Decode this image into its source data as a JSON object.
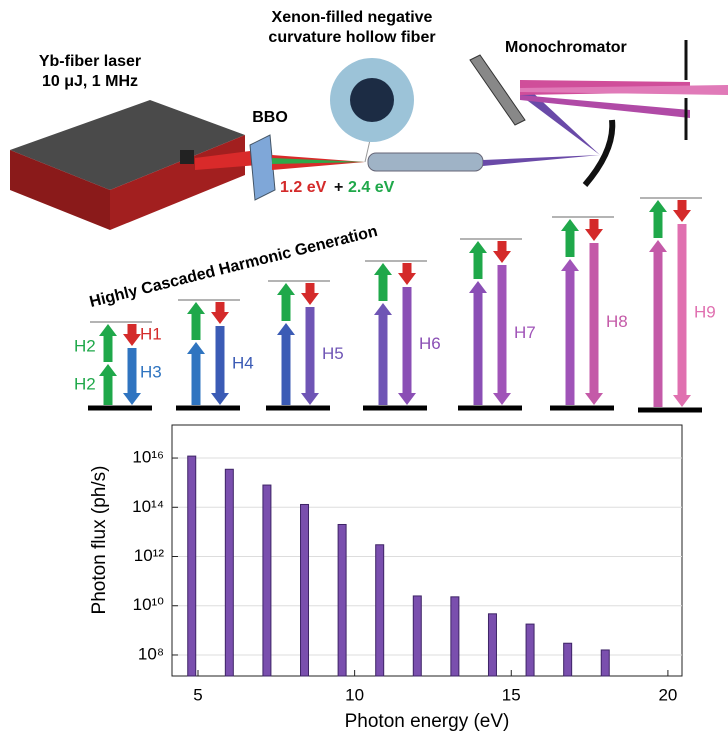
{
  "diagram": {
    "laser": [
      "Yb-fiber laser",
      "10 μJ, 1 MHz"
    ],
    "bbo": "BBO",
    "fiber": [
      "Xenon-filled negative",
      "curvature hollow fiber"
    ],
    "monochromator": "Monochromator",
    "beam_energies": {
      "fundamental": "1.2 eV",
      "plus": "+",
      "second": "2.4 eV"
    },
    "scheme_title": "Highly Cascaded Harmonic Generation",
    "harmonic_labels": [
      "H2",
      "H2",
      "H1",
      "H3",
      "H4",
      "H5",
      "H6",
      "H7",
      "H8",
      "H9"
    ]
  },
  "chart_data": {
    "type": "bar",
    "x_label": "Photon energy (eV)",
    "y_label": "Photon flux (ph/s)",
    "x": [
      4.8,
      6.0,
      7.2,
      8.4,
      9.6,
      10.8,
      12.0,
      13.2,
      14.4,
      15.6,
      16.8,
      18.0
    ],
    "values": [
      1.2e+16,
      3500000000000000.0,
      800000000000000.0,
      130000000000000.0,
      20000000000000.0,
      3000000000000.0,
      25000000000.0,
      23000000000.0,
      4700000000.0,
      1800000000.0,
      300000000.0,
      160000000.0
    ],
    "color": "#7a4fae",
    "xlim": [
      4.17,
      20.45
    ],
    "xticks": [
      5,
      10,
      15,
      20
    ],
    "ylim": [
      14000000.0,
      2.2e+17
    ],
    "yscale": "log",
    "yticks": [
      {
        "value": 100000000.0,
        "label": "10⁸"
      },
      {
        "value": 10000000000.0,
        "label": "10¹⁰"
      },
      {
        "value": 1000000000000.0,
        "label": "10¹²"
      },
      {
        "value": 100000000000000.0,
        "label": "10¹⁴"
      },
      {
        "value": 1e+16,
        "label": "10¹⁶"
      }
    ],
    "grid": true
  }
}
